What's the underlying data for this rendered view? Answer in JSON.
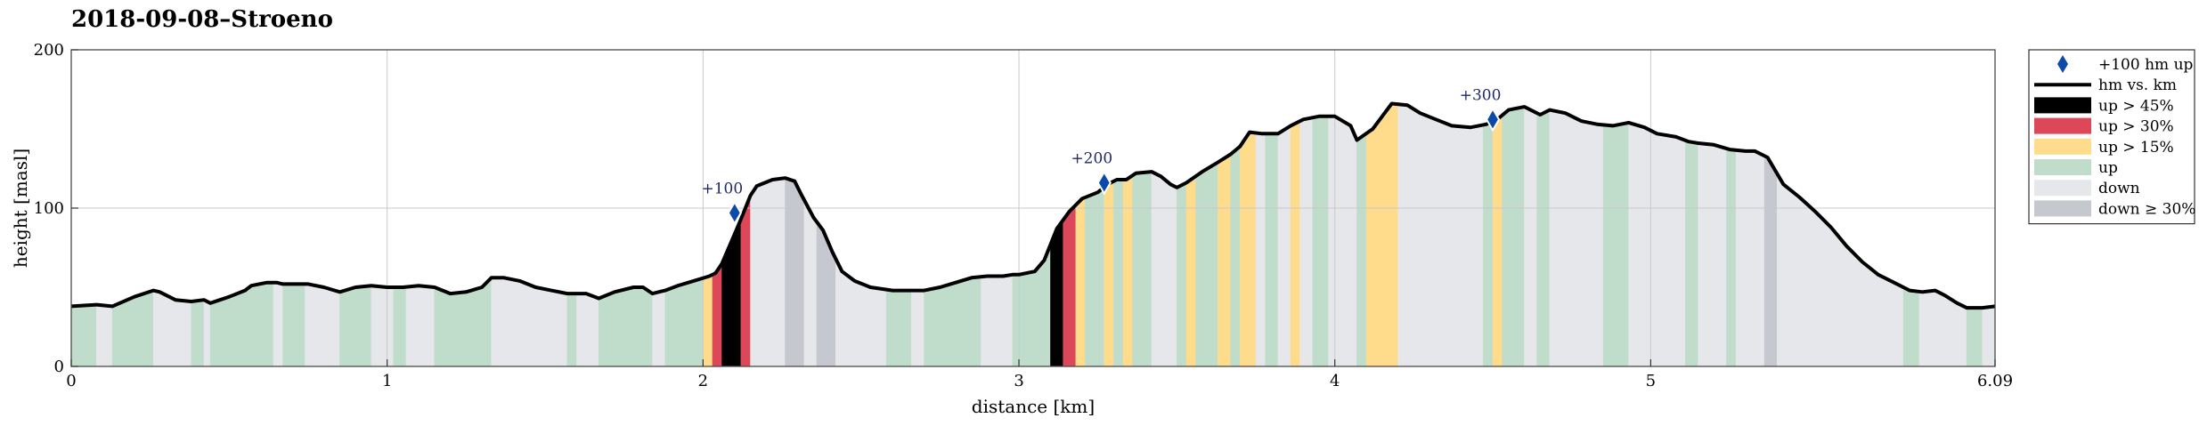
{
  "chart_data": {
    "type": "area",
    "title": "2018-09-08–Stroeno",
    "xlabel": "distance [km]",
    "ylabel": "height [masl]",
    "xlim": [
      0,
      6.09
    ],
    "ylim": [
      0,
      200
    ],
    "xticks": [
      {
        "value": 0,
        "label": "0"
      },
      {
        "value": 1,
        "label": "1"
      },
      {
        "value": 2,
        "label": "2"
      },
      {
        "value": 3,
        "label": "3"
      },
      {
        "value": 4,
        "label": "4"
      },
      {
        "value": 5,
        "label": "5"
      },
      {
        "value": 6.09,
        "label": "6.09"
      }
    ],
    "yticks": [
      {
        "value": 0,
        "label": "0"
      },
      {
        "value": 100,
        "label": "100"
      },
      {
        "value": 200,
        "label": "200"
      }
    ],
    "grid": true,
    "legend_position": "outside-right",
    "colors": {
      "line": "#000000",
      "marker": "#0b4aa8",
      "up45": "#000000",
      "up30": "#dc4759",
      "up15": "#ffdc8c",
      "up": "#c0dccb",
      "down": "#e6e7ea",
      "down30": "#c6c8cf"
    },
    "legend": [
      {
        "key": "marker",
        "label": "+100 hm up"
      },
      {
        "key": "line",
        "label": "hm vs. km"
      },
      {
        "key": "up45",
        "label": "up > 45%"
      },
      {
        "key": "up30",
        "label": "up > 30%"
      },
      {
        "key": "up15",
        "label": "up > 15%"
      },
      {
        "key": "up",
        "label": "up"
      },
      {
        "key": "down",
        "label": "down"
      },
      {
        "key": "down30",
        "label": "down ≥ 30%"
      }
    ],
    "profile": [
      [
        0,
        38
      ],
      [
        0.08,
        39
      ],
      [
        0.13,
        38
      ],
      [
        0.2,
        44
      ],
      [
        0.26,
        48
      ],
      [
        0.28,
        47
      ],
      [
        0.33,
        42
      ],
      [
        0.38,
        41
      ],
      [
        0.42,
        42
      ],
      [
        0.44,
        40
      ],
      [
        0.5,
        44
      ],
      [
        0.55,
        48
      ],
      [
        0.57,
        51
      ],
      [
        0.62,
        53
      ],
      [
        0.65,
        53
      ],
      [
        0.67,
        52
      ],
      [
        0.75,
        52
      ],
      [
        0.8,
        50
      ],
      [
        0.85,
        47
      ],
      [
        0.9,
        50
      ],
      [
        0.95,
        51
      ],
      [
        1.0,
        50
      ],
      [
        1.05,
        50
      ],
      [
        1.1,
        51
      ],
      [
        1.15,
        50
      ],
      [
        1.2,
        46
      ],
      [
        1.25,
        47
      ],
      [
        1.3,
        50
      ],
      [
        1.33,
        56
      ],
      [
        1.37,
        56
      ],
      [
        1.42,
        54
      ],
      [
        1.47,
        50
      ],
      [
        1.52,
        48
      ],
      [
        1.57,
        46
      ],
      [
        1.63,
        46
      ],
      [
        1.67,
        43
      ],
      [
        1.72,
        47
      ],
      [
        1.78,
        50
      ],
      [
        1.81,
        50
      ],
      [
        1.84,
        46
      ],
      [
        1.88,
        48
      ],
      [
        1.92,
        51
      ],
      [
        1.97,
        54
      ],
      [
        2.02,
        57
      ],
      [
        2.04,
        59
      ],
      [
        2.06,
        65
      ],
      [
        2.09,
        79
      ],
      [
        2.12,
        93
      ],
      [
        2.15,
        108
      ],
      [
        2.17,
        114
      ],
      [
        2.22,
        118
      ],
      [
        2.26,
        119
      ],
      [
        2.29,
        117
      ],
      [
        2.31,
        109
      ],
      [
        2.35,
        94
      ],
      [
        2.38,
        86
      ],
      [
        2.41,
        72
      ],
      [
        2.44,
        60
      ],
      [
        2.48,
        54
      ],
      [
        2.53,
        50
      ],
      [
        2.6,
        48
      ],
      [
        2.7,
        48
      ],
      [
        2.75,
        50
      ],
      [
        2.8,
        53
      ],
      [
        2.85,
        56
      ],
      [
        2.9,
        57
      ],
      [
        2.95,
        57
      ],
      [
        2.98,
        58
      ],
      [
        3.0,
        58
      ],
      [
        3.05,
        60
      ],
      [
        3.08,
        67
      ],
      [
        3.12,
        87
      ],
      [
        3.16,
        98
      ],
      [
        3.2,
        106
      ],
      [
        3.25,
        110
      ],
      [
        3.28,
        115
      ],
      [
        3.31,
        118
      ],
      [
        3.34,
        118
      ],
      [
        3.37,
        122
      ],
      [
        3.42,
        123
      ],
      [
        3.45,
        120
      ],
      [
        3.48,
        115
      ],
      [
        3.5,
        113
      ],
      [
        3.53,
        116
      ],
      [
        3.58,
        123
      ],
      [
        3.63,
        129
      ],
      [
        3.67,
        134
      ],
      [
        3.7,
        139
      ],
      [
        3.73,
        148
      ],
      [
        3.77,
        147
      ],
      [
        3.82,
        147
      ],
      [
        3.86,
        152
      ],
      [
        3.9,
        156
      ],
      [
        3.95,
        158
      ],
      [
        4.0,
        158
      ],
      [
        4.05,
        152
      ],
      [
        4.07,
        143
      ],
      [
        4.12,
        150
      ],
      [
        4.15,
        158
      ],
      [
        4.18,
        166
      ],
      [
        4.23,
        165
      ],
      [
        4.27,
        160
      ],
      [
        4.32,
        156
      ],
      [
        4.37,
        152
      ],
      [
        4.43,
        151
      ],
      [
        4.48,
        153
      ],
      [
        4.52,
        157
      ],
      [
        4.55,
        162
      ],
      [
        4.6,
        164
      ],
      [
        4.65,
        159
      ],
      [
        4.68,
        162
      ],
      [
        4.73,
        160
      ],
      [
        4.78,
        155
      ],
      [
        4.83,
        153
      ],
      [
        4.88,
        152
      ],
      [
        4.93,
        154
      ],
      [
        4.98,
        151
      ],
      [
        5.02,
        147
      ],
      [
        5.08,
        145
      ],
      [
        5.12,
        142
      ],
      [
        5.15,
        141
      ],
      [
        5.2,
        140
      ],
      [
        5.25,
        137
      ],
      [
        5.3,
        136
      ],
      [
        5.33,
        136
      ],
      [
        5.37,
        132
      ],
      [
        5.42,
        115
      ],
      [
        5.47,
        107
      ],
      [
        5.52,
        98
      ],
      [
        5.57,
        88
      ],
      [
        5.62,
        76
      ],
      [
        5.67,
        66
      ],
      [
        5.72,
        58
      ],
      [
        5.78,
        52
      ],
      [
        5.82,
        48
      ],
      [
        5.86,
        47
      ],
      [
        5.9,
        48
      ],
      [
        5.93,
        45
      ],
      [
        5.97,
        40
      ],
      [
        6.0,
        37
      ],
      [
        6.05,
        37
      ],
      [
        6.09,
        38
      ]
    ],
    "segments": [
      [
        0.0,
        0.08,
        "up"
      ],
      [
        0.08,
        0.13,
        "down"
      ],
      [
        0.13,
        0.26,
        "up"
      ],
      [
        0.26,
        0.38,
        "down"
      ],
      [
        0.38,
        0.42,
        "up"
      ],
      [
        0.42,
        0.44,
        "down"
      ],
      [
        0.44,
        0.64,
        "up"
      ],
      [
        0.64,
        0.67,
        "down"
      ],
      [
        0.67,
        0.74,
        "up"
      ],
      [
        0.74,
        0.85,
        "down"
      ],
      [
        0.85,
        0.95,
        "up"
      ],
      [
        0.95,
        1.02,
        "down"
      ],
      [
        1.02,
        1.06,
        "up"
      ],
      [
        1.06,
        1.15,
        "down"
      ],
      [
        1.15,
        1.33,
        "up"
      ],
      [
        1.33,
        1.57,
        "down"
      ],
      [
        1.57,
        1.6,
        "up"
      ],
      [
        1.6,
        1.67,
        "down"
      ],
      [
        1.67,
        1.84,
        "up"
      ],
      [
        1.84,
        1.88,
        "down"
      ],
      [
        1.88,
        2.0,
        "up"
      ],
      [
        2.0,
        2.03,
        "up15"
      ],
      [
        2.03,
        2.06,
        "up30"
      ],
      [
        2.06,
        2.12,
        "up45"
      ],
      [
        2.12,
        2.15,
        "up30"
      ],
      [
        2.15,
        2.26,
        "down"
      ],
      [
        2.26,
        2.32,
        "down30"
      ],
      [
        2.32,
        2.36,
        "down"
      ],
      [
        2.36,
        2.42,
        "down30"
      ],
      [
        2.42,
        2.58,
        "down"
      ],
      [
        2.58,
        2.66,
        "up"
      ],
      [
        2.66,
        2.7,
        "down"
      ],
      [
        2.7,
        2.88,
        "up"
      ],
      [
        2.88,
        2.98,
        "down"
      ],
      [
        2.98,
        3.1,
        "up"
      ],
      [
        3.1,
        3.14,
        "up45"
      ],
      [
        3.14,
        3.18,
        "up30"
      ],
      [
        3.18,
        3.21,
        "up15"
      ],
      [
        3.21,
        3.27,
        "up"
      ],
      [
        3.27,
        3.3,
        "up15"
      ],
      [
        3.3,
        3.33,
        "up"
      ],
      [
        3.33,
        3.36,
        "up15"
      ],
      [
        3.36,
        3.42,
        "up"
      ],
      [
        3.42,
        3.5,
        "down"
      ],
      [
        3.5,
        3.53,
        "up"
      ],
      [
        3.53,
        3.56,
        "up15"
      ],
      [
        3.56,
        3.63,
        "up"
      ],
      [
        3.63,
        3.67,
        "up15"
      ],
      [
        3.67,
        3.7,
        "up"
      ],
      [
        3.7,
        3.75,
        "up15"
      ],
      [
        3.75,
        3.78,
        "down"
      ],
      [
        3.78,
        3.82,
        "up"
      ],
      [
        3.82,
        3.86,
        "down"
      ],
      [
        3.86,
        3.89,
        "up15"
      ],
      [
        3.89,
        3.93,
        "down"
      ],
      [
        3.93,
        3.98,
        "up"
      ],
      [
        3.98,
        4.07,
        "down"
      ],
      [
        4.07,
        4.1,
        "up"
      ],
      [
        4.1,
        4.2,
        "up15"
      ],
      [
        4.2,
        4.47,
        "down"
      ],
      [
        4.47,
        4.5,
        "up"
      ],
      [
        4.5,
        4.53,
        "up15"
      ],
      [
        4.53,
        4.6,
        "up"
      ],
      [
        4.6,
        4.64,
        "down"
      ],
      [
        4.64,
        4.68,
        "up"
      ],
      [
        4.68,
        4.85,
        "down"
      ],
      [
        4.85,
        4.93,
        "up"
      ],
      [
        4.93,
        5.11,
        "down"
      ],
      [
        5.11,
        5.15,
        "up"
      ],
      [
        5.15,
        5.24,
        "down"
      ],
      [
        5.24,
        5.27,
        "up"
      ],
      [
        5.27,
        5.36,
        "down"
      ],
      [
        5.36,
        5.4,
        "down30"
      ],
      [
        5.4,
        5.8,
        "down"
      ],
      [
        5.8,
        5.85,
        "up"
      ],
      [
        5.85,
        6.0,
        "down"
      ],
      [
        6.0,
        6.05,
        "up"
      ],
      [
        6.05,
        6.09,
        "down"
      ]
    ],
    "markers": [
      {
        "x": 2.1,
        "y": 97,
        "label": "+100"
      },
      {
        "x": 3.27,
        "y": 116,
        "label": "+200"
      },
      {
        "x": 4.5,
        "y": 156,
        "label": "+300"
      }
    ]
  }
}
